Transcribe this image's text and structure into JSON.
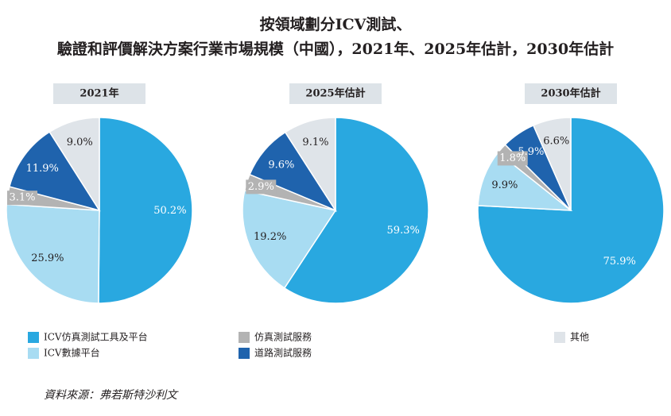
{
  "title": [
    "按領域劃分ICV測試、",
    "驗證和評價解決方案行業市場規模（中國），2021年、2025年估計，2030年估計"
  ],
  "source": "資料來源：弗若斯特沙利文",
  "chart_data": [
    {
      "type": "pie",
      "title": "2021年",
      "categories": [
        "ICV仿真測試工具及平台",
        "ICV數據平台",
        "仿真測試服務",
        "道路測試服務",
        "其他"
      ],
      "values": [
        50.2,
        25.9,
        3.1,
        11.9,
        9.0
      ],
      "value_labels": [
        "50.2%",
        "25.9%",
        "3.1%",
        "11.9%",
        "9.0%"
      ],
      "colors": [
        "#29a8e0",
        "#a8dcf2",
        "#b3b3b3",
        "#1f63ad",
        "#dfe4e9"
      ]
    },
    {
      "type": "pie",
      "title": "2025年估計",
      "categories": [
        "ICV仿真測試工具及平台",
        "ICV數據平台",
        "仿真測試服務",
        "道路測試服務",
        "其他"
      ],
      "values": [
        59.3,
        19.2,
        2.9,
        9.6,
        9.1
      ],
      "value_labels": [
        "59.3%",
        "19.2%",
        "2.9%",
        "9.6%",
        "9.1%"
      ],
      "colors": [
        "#29a8e0",
        "#a8dcf2",
        "#b3b3b3",
        "#1f63ad",
        "#dfe4e9"
      ]
    },
    {
      "type": "pie",
      "title": "2030年估計",
      "categories": [
        "ICV仿真測試工具及平台",
        "ICV數據平台",
        "仿真測試服務",
        "道路測試服務",
        "其他"
      ],
      "values": [
        75.9,
        9.9,
        1.8,
        5.9,
        6.6
      ],
      "value_labels": [
        "75.9%",
        "9.9%",
        "1.8%",
        "5.9%",
        "6.6%"
      ],
      "colors": [
        "#29a8e0",
        "#a8dcf2",
        "#b3b3b3",
        "#1f63ad",
        "#dfe4e9"
      ]
    }
  ]
}
